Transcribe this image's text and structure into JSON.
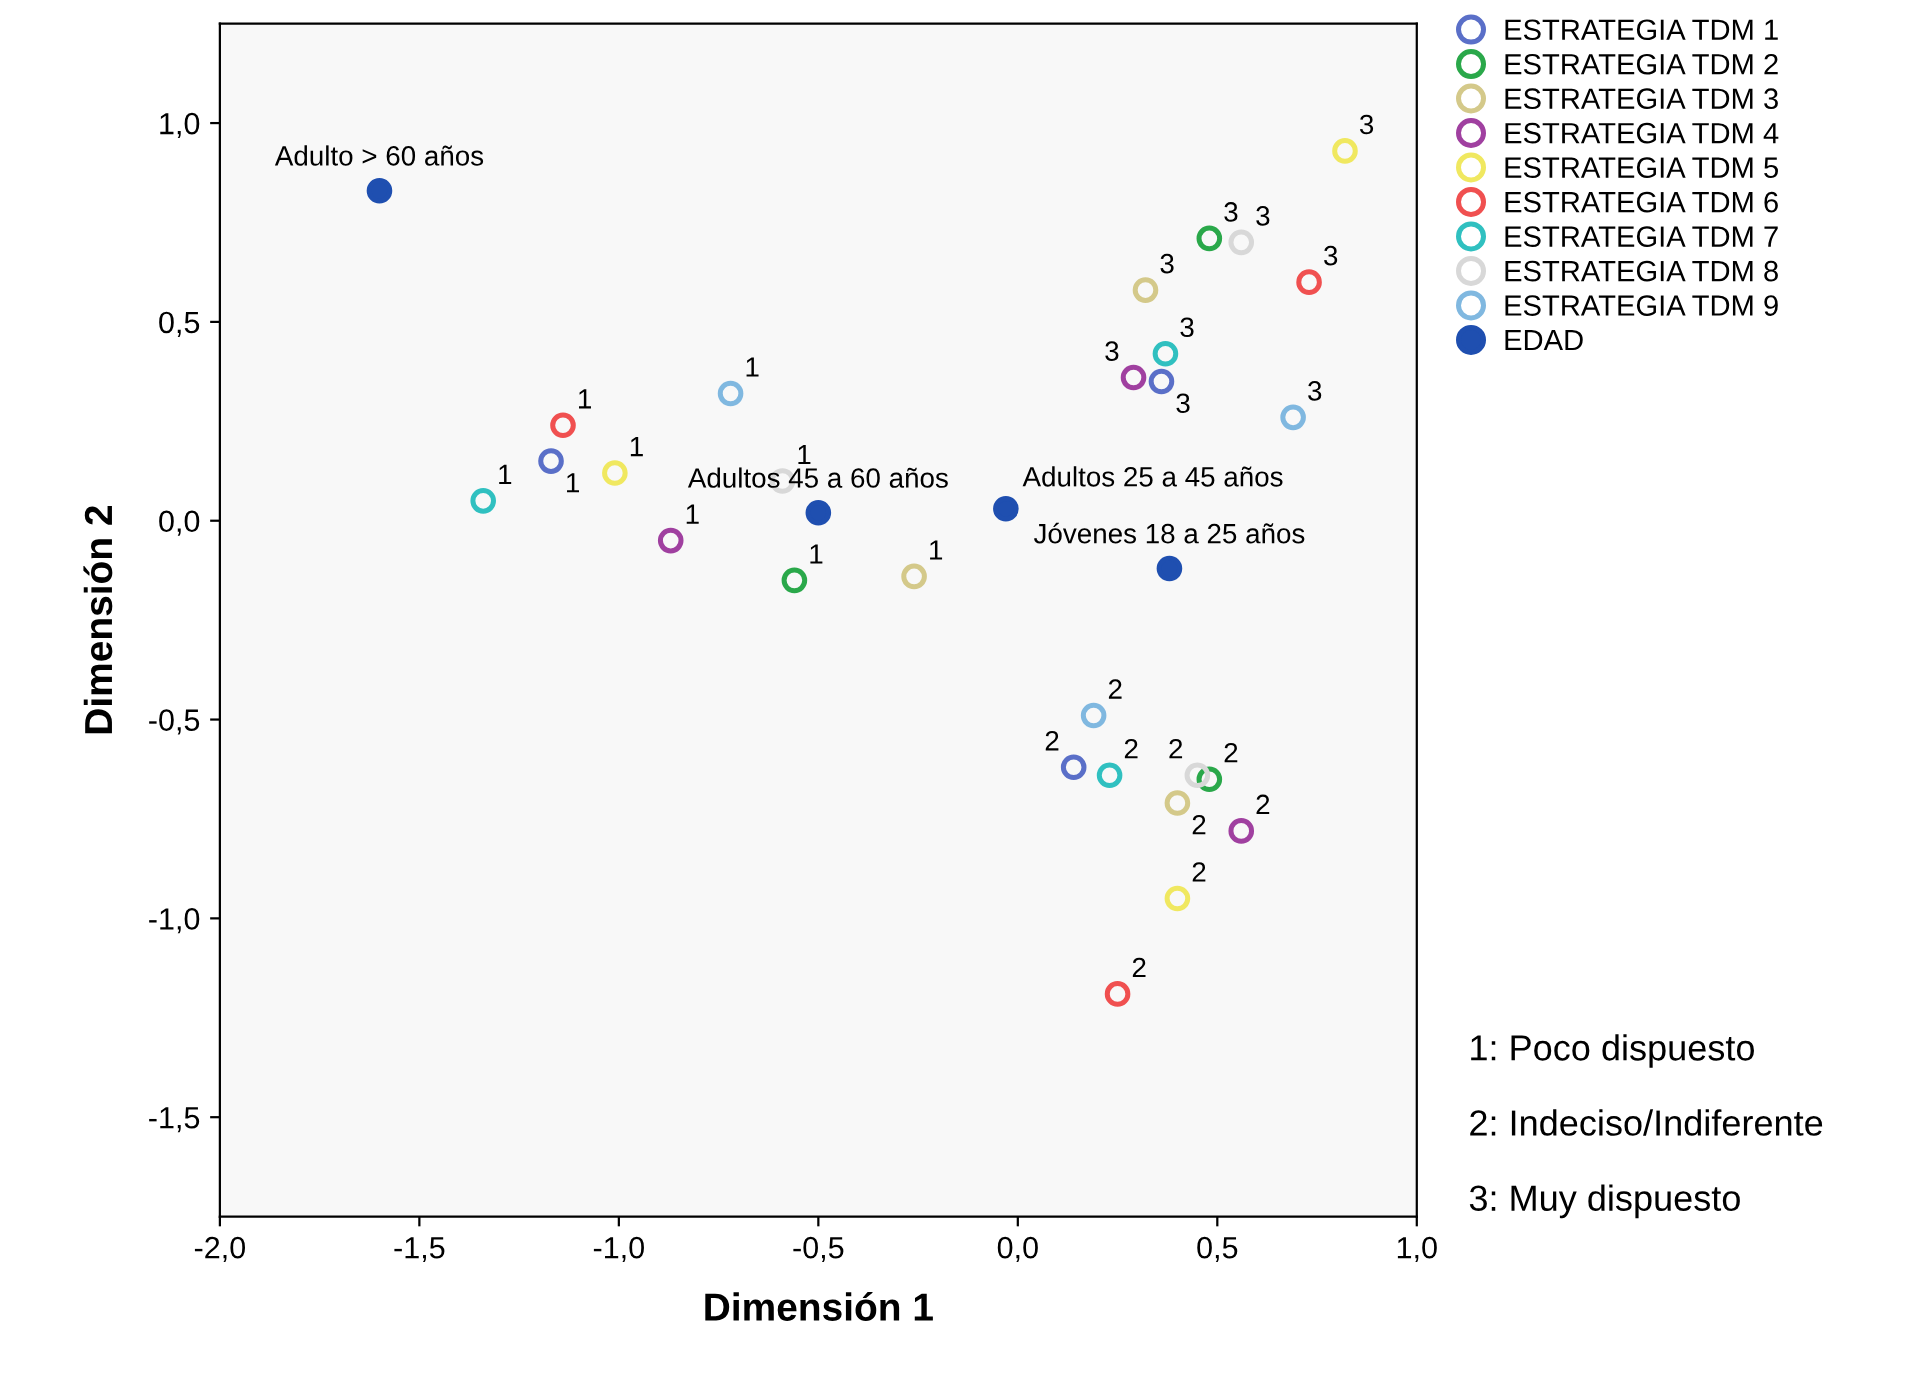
{
  "chart_data": {
    "type": "scatter",
    "xlabel": "Dimensión 1",
    "ylabel": "Dimensión 2",
    "xlim": [
      -2.0,
      1.0
    ],
    "ylim": [
      -1.75,
      1.25
    ],
    "xticks": [
      {
        "value": -2.0,
        "label": "-2,0"
      },
      {
        "value": -1.5,
        "label": "-1,5"
      },
      {
        "value": -1.0,
        "label": "-1,0"
      },
      {
        "value": -0.5,
        "label": "-0,5"
      },
      {
        "value": 0.0,
        "label": "0,0"
      },
      {
        "value": 0.5,
        "label": "0,5"
      },
      {
        "value": 1.0,
        "label": "1,0"
      }
    ],
    "yticks": [
      {
        "value": -1.5,
        "label": "-1,5"
      },
      {
        "value": -1.0,
        "label": "-1,0"
      },
      {
        "value": -0.5,
        "label": "-0,5"
      },
      {
        "value": 0.0,
        "label": "0,0"
      },
      {
        "value": 0.5,
        "label": "0,5"
      },
      {
        "value": 1.0,
        "label": "1,0"
      }
    ],
    "grid": false,
    "legend": "top right",
    "marker": "circle",
    "series": [
      {
        "name": "ESTRATEGIA TDM 1",
        "color": "#5a6fc8",
        "x": [
          -1.17,
          0.14,
          0.36
        ],
        "values": [
          0.15,
          -0.62,
          0.35
        ]
      },
      {
        "name": "ESTRATEGIA TDM 2",
        "color": "#2aa84a",
        "x": [
          -0.56,
          0.48,
          0.48
        ],
        "values": [
          -0.15,
          -0.65,
          0.71
        ]
      },
      {
        "name": "ESTRATEGIA TDM 3",
        "color": "#d4c98a",
        "x": [
          -0.26,
          0.4,
          0.32
        ],
        "values": [
          -0.14,
          -0.71,
          0.58
        ]
      },
      {
        "name": "ESTRATEGIA TDM 4",
        "color": "#a040a0",
        "x": [
          -0.87,
          0.56,
          0.29
        ],
        "values": [
          -0.05,
          -0.78,
          0.36
        ]
      },
      {
        "name": "ESTRATEGIA TDM 5",
        "color": "#f0e860",
        "x": [
          -1.01,
          0.4,
          0.82
        ],
        "values": [
          0.12,
          -0.95,
          0.93
        ]
      },
      {
        "name": "ESTRATEGIA TDM 6",
        "color": "#f05050",
        "x": [
          -1.14,
          0.25,
          0.73
        ],
        "values": [
          0.24,
          -1.19,
          0.6
        ]
      },
      {
        "name": "ESTRATEGIA TDM 7",
        "color": "#30c0c0",
        "x": [
          -1.34,
          0.23,
          0.37
        ],
        "values": [
          0.05,
          -0.64,
          0.42
        ]
      },
      {
        "name": "ESTRATEGIA TDM 8",
        "color": "#d8d8d8",
        "x": [
          -0.59,
          0.45,
          0.56
        ],
        "values": [
          0.1,
          -0.64,
          0.7
        ]
      },
      {
        "name": "ESTRATEGIA TDM 9",
        "color": "#80b8e0",
        "x": [
          -0.72,
          0.19,
          0.69
        ],
        "values": [
          0.32,
          -0.49,
          0.26
        ]
      },
      {
        "name": "EDAD",
        "color": "#1f4fb0",
        "x": [
          -1.6,
          -0.5,
          -0.03,
          0.38
        ],
        "values": [
          0.83,
          0.02,
          0.03,
          -0.12
        ]
      }
    ],
    "annotations": [
      {
        "text": "1",
        "x": -1.17,
        "y": 0.15
      },
      {
        "text": "2",
        "x": 0.14,
        "y": -0.62
      },
      {
        "text": "3",
        "x": 0.36,
        "y": 0.35
      },
      {
        "text": "1",
        "x": -0.56,
        "y": -0.15
      },
      {
        "text": "2",
        "x": 0.48,
        "y": -0.65
      },
      {
        "text": "3",
        "x": 0.48,
        "y": 0.71
      },
      {
        "text": "1",
        "x": -0.26,
        "y": -0.14
      },
      {
        "text": "2",
        "x": 0.4,
        "y": -0.71
      },
      {
        "text": "3",
        "x": 0.32,
        "y": 0.58
      },
      {
        "text": "1",
        "x": -0.87,
        "y": -0.05
      },
      {
        "text": "2",
        "x": 0.56,
        "y": -0.78
      },
      {
        "text": "3",
        "x": 0.29,
        "y": 0.36
      },
      {
        "text": "1",
        "x": -1.01,
        "y": 0.12
      },
      {
        "text": "2",
        "x": 0.4,
        "y": -0.95
      },
      {
        "text": "3",
        "x": 0.82,
        "y": 0.93
      },
      {
        "text": "1",
        "x": -1.14,
        "y": 0.24
      },
      {
        "text": "2",
        "x": 0.25,
        "y": -1.19
      },
      {
        "text": "3",
        "x": 0.73,
        "y": 0.6
      },
      {
        "text": "1",
        "x": -1.34,
        "y": 0.05
      },
      {
        "text": "2",
        "x": 0.23,
        "y": -0.64
      },
      {
        "text": "3",
        "x": 0.37,
        "y": 0.42
      },
      {
        "text": "1",
        "x": -0.59,
        "y": 0.1
      },
      {
        "text": "2",
        "x": 0.45,
        "y": -0.64
      },
      {
        "text": "3",
        "x": 0.56,
        "y": 0.7
      },
      {
        "text": "1",
        "x": -0.72,
        "y": 0.32
      },
      {
        "text": "2",
        "x": 0.19,
        "y": -0.49
      },
      {
        "text": "3",
        "x": 0.69,
        "y": 0.26
      },
      {
        "text": "Adulto > 60 años",
        "x": -1.6,
        "y": 0.83
      },
      {
        "text": "Adultos 45 a 60 años",
        "x": -0.5,
        "y": 0.02
      },
      {
        "text": "Adultos 25 a 45 años",
        "x": -0.03,
        "y": 0.03
      },
      {
        "text": "Jóvenes 18 a 25 años",
        "x": 0.38,
        "y": -0.12
      },
      "1: Poco dispuesto",
      "2: Indeciso/Indiferente",
      "3: Muy dispuesto"
    ]
  }
}
